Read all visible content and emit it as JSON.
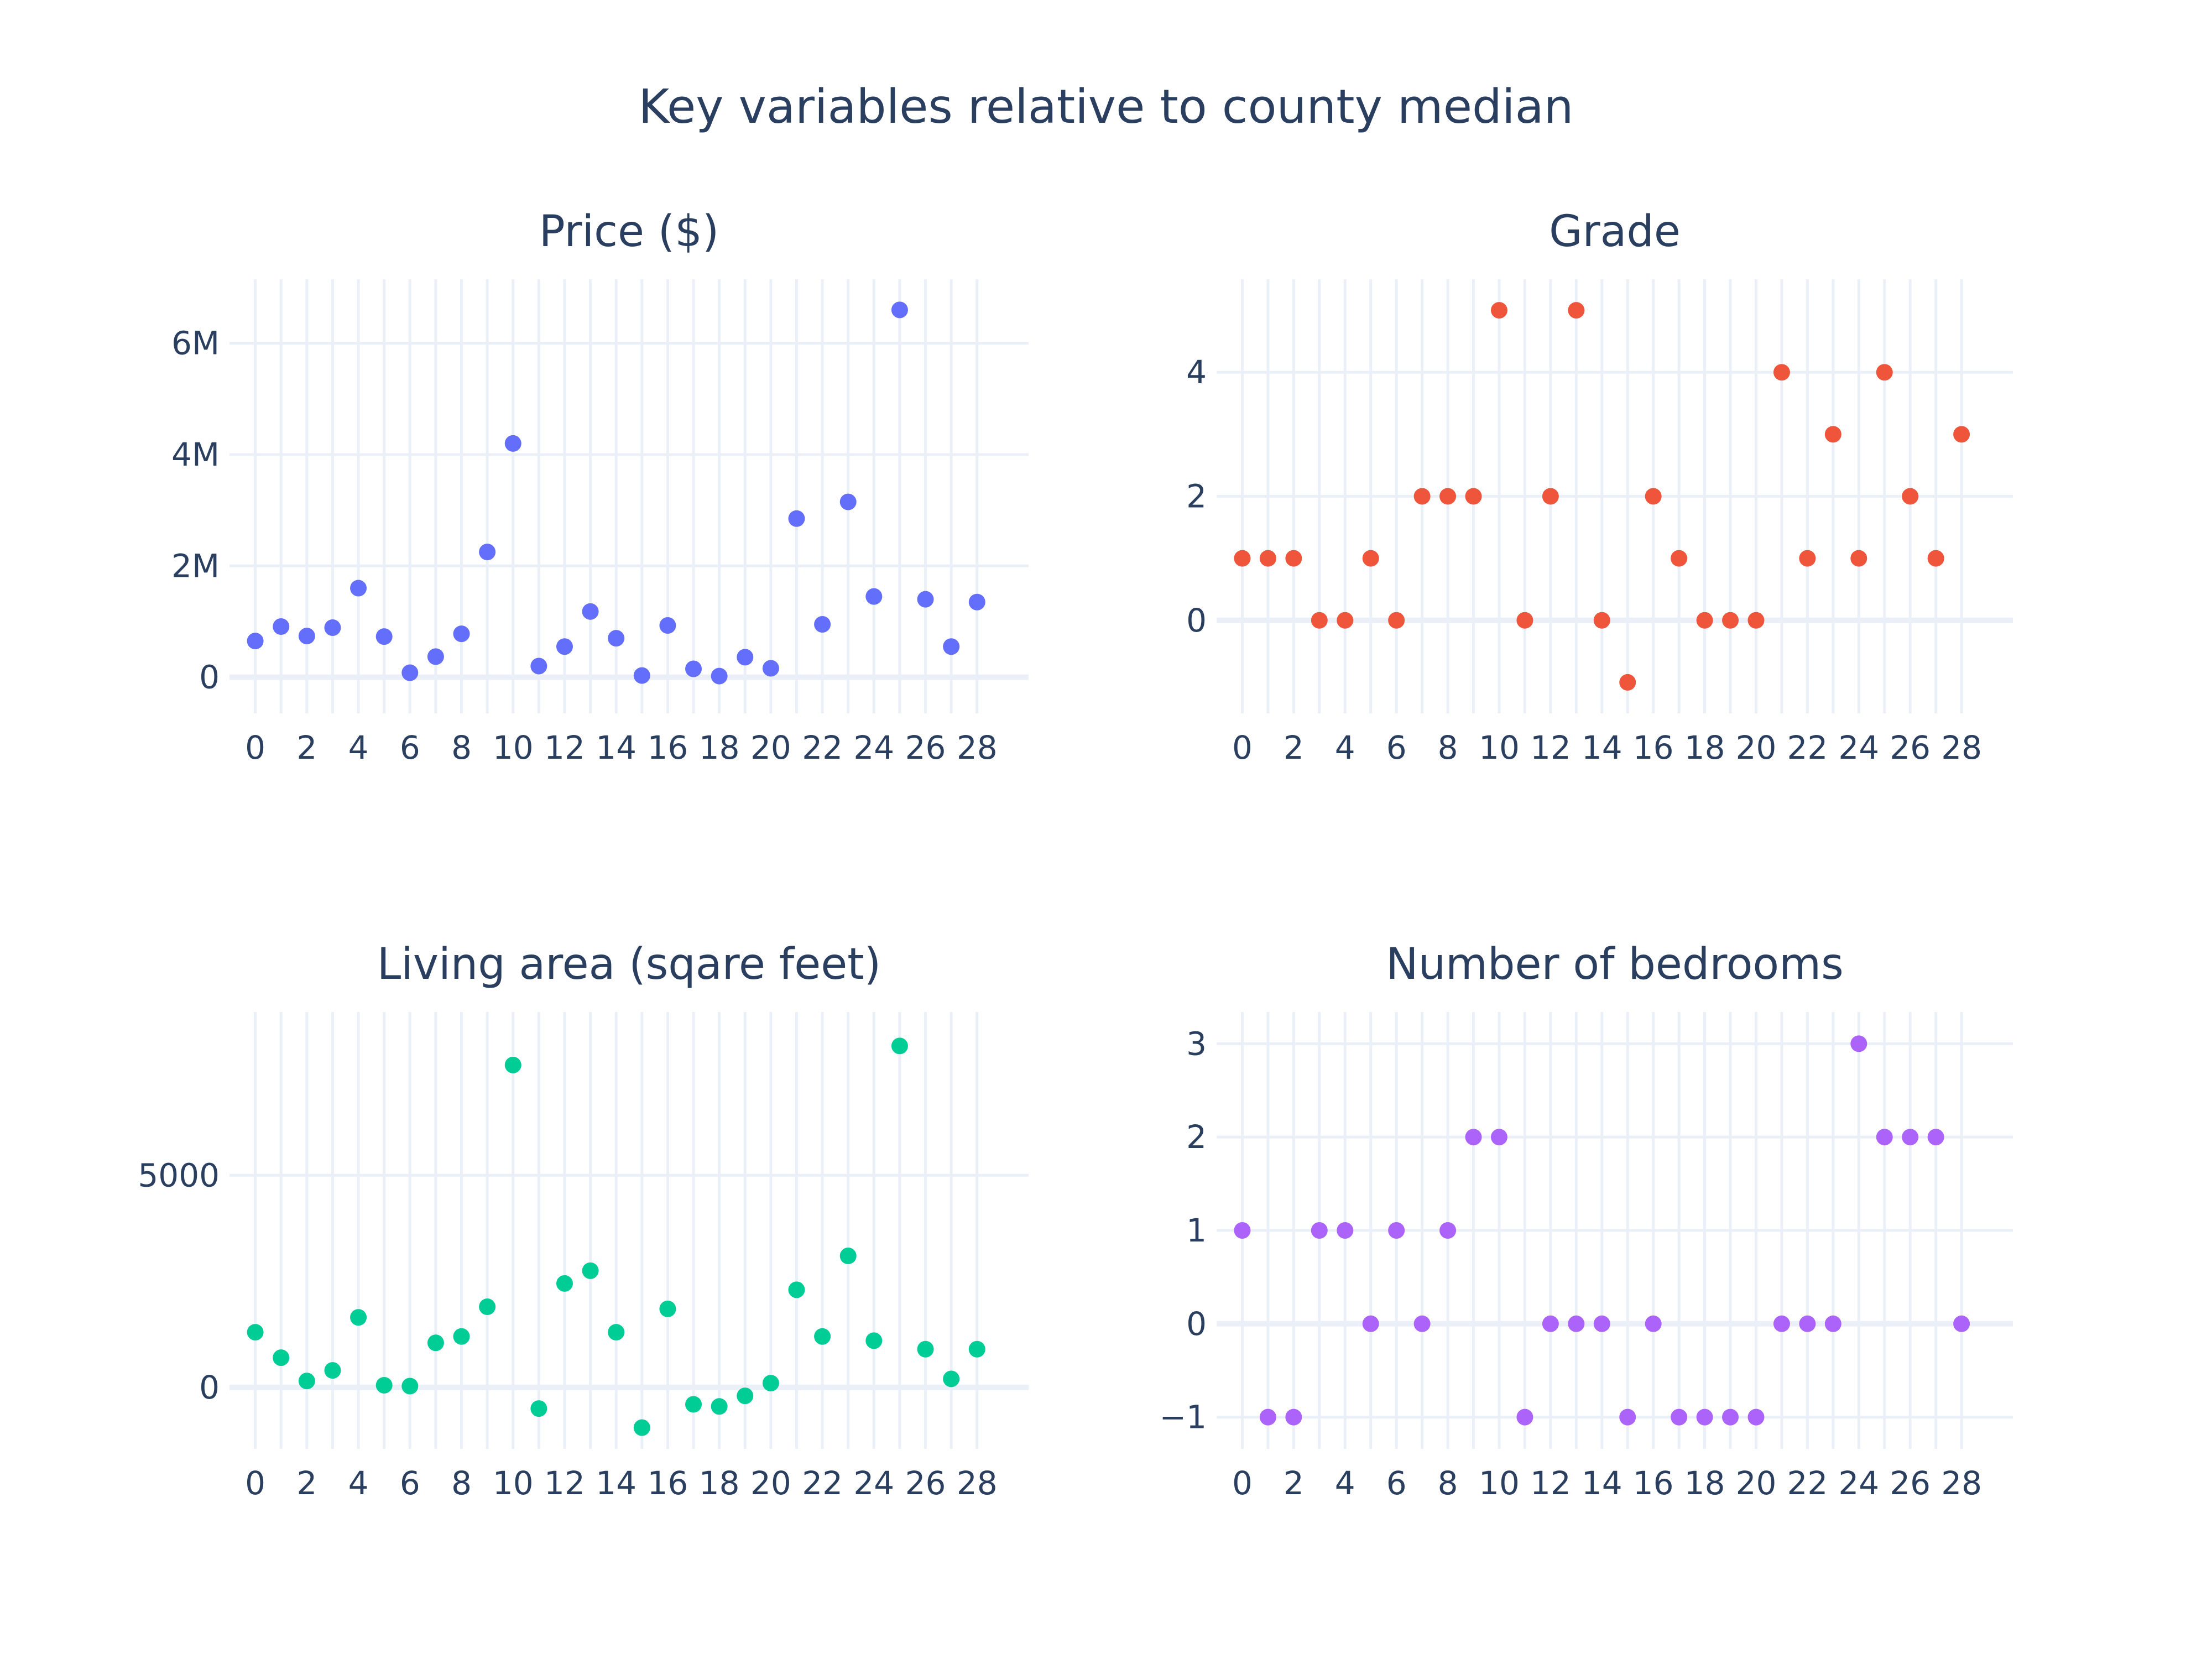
{
  "title": "Key variables relative to county median",
  "chart_data": [
    {
      "type": "scatter",
      "title": "Price ($)",
      "color": "#636efa",
      "x": [
        0,
        1,
        2,
        3,
        4,
        5,
        6,
        7,
        8,
        9,
        10,
        11,
        12,
        13,
        14,
        15,
        16,
        17,
        18,
        19,
        20,
        21,
        22,
        23,
        24,
        25,
        26,
        27,
        28
      ],
      "y": [
        650000,
        910000,
        740000,
        890000,
        1600000,
        730000,
        80000,
        370000,
        780000,
        2250000,
        4200000,
        200000,
        550000,
        1180000,
        700000,
        30000,
        930000,
        150000,
        20000,
        360000,
        160000,
        2850000,
        950000,
        3150000,
        1450000,
        6600000,
        1400000,
        550000,
        1350000
      ],
      "ylim": [
        -650000,
        7150000
      ],
      "xlim": [
        -1,
        30
      ],
      "yticks": [
        0,
        2000000,
        4000000,
        6000000
      ],
      "ytick_labels": [
        "0",
        "2M",
        "4M",
        "6M"
      ],
      "xticks": [
        0,
        2,
        4,
        6,
        8,
        10,
        12,
        14,
        16,
        18,
        20,
        22,
        24,
        26,
        28
      ],
      "xtick_labels": [
        "0",
        "2",
        "4",
        "6",
        "8",
        "10",
        "12",
        "14",
        "16",
        "18",
        "20",
        "22",
        "24",
        "26",
        "28"
      ]
    },
    {
      "type": "scatter",
      "title": "Grade",
      "color": "#ef553b",
      "x": [
        0,
        1,
        2,
        3,
        4,
        5,
        6,
        7,
        8,
        9,
        10,
        11,
        12,
        13,
        14,
        15,
        16,
        17,
        18,
        19,
        20,
        21,
        22,
        23,
        24,
        25,
        26,
        27,
        28
      ],
      "y": [
        1,
        1,
        1,
        0,
        0,
        1,
        0,
        2,
        2,
        2,
        5,
        0,
        2,
        5,
        0,
        -1,
        2,
        1,
        0,
        0,
        0,
        4,
        1,
        3,
        1,
        4,
        2,
        1,
        3
      ],
      "ylim": [
        -1.5,
        5.5
      ],
      "xlim": [
        -1,
        30
      ],
      "yticks": [
        0,
        2,
        4
      ],
      "ytick_labels": [
        "0",
        "2",
        "4"
      ],
      "xticks": [
        0,
        2,
        4,
        6,
        8,
        10,
        12,
        14,
        16,
        18,
        20,
        22,
        24,
        26,
        28
      ],
      "xtick_labels": [
        "0",
        "2",
        "4",
        "6",
        "8",
        "10",
        "12",
        "14",
        "16",
        "18",
        "20",
        "22",
        "24",
        "26",
        "28"
      ]
    },
    {
      "type": "scatter",
      "title": "Living area (sqare feet)",
      "color": "#00cc96",
      "x": [
        0,
        1,
        2,
        3,
        4,
        5,
        6,
        7,
        8,
        9,
        10,
        11,
        12,
        13,
        14,
        15,
        16,
        17,
        18,
        19,
        20,
        21,
        22,
        23,
        24,
        25,
        26,
        27,
        28
      ],
      "y": [
        1300,
        700,
        150,
        400,
        1650,
        50,
        30,
        1050,
        1200,
        1900,
        7600,
        -500,
        2450,
        2750,
        1300,
        -950,
        1850,
        -400,
        -450,
        -200,
        100,
        2300,
        1200,
        3100,
        1100,
        8050,
        900,
        200,
        900
      ],
      "ylim": [
        -1450,
        8850
      ],
      "xlim": [
        -1,
        30
      ],
      "yticks": [
        0,
        5000
      ],
      "ytick_labels": [
        "0",
        "5000"
      ],
      "xticks": [
        0,
        2,
        4,
        6,
        8,
        10,
        12,
        14,
        16,
        18,
        20,
        22,
        24,
        26,
        28
      ],
      "xtick_labels": [
        "0",
        "2",
        "4",
        "6",
        "8",
        "10",
        "12",
        "14",
        "16",
        "18",
        "20",
        "22",
        "24",
        "26",
        "28"
      ]
    },
    {
      "type": "scatter",
      "title": "Number of bedrooms",
      "color": "#ab63fa",
      "x": [
        0,
        1,
        2,
        3,
        4,
        5,
        6,
        7,
        8,
        9,
        10,
        11,
        12,
        13,
        14,
        15,
        16,
        17,
        18,
        19,
        20,
        21,
        22,
        23,
        24,
        25,
        26,
        27,
        28
      ],
      "y": [
        1,
        -1,
        -1,
        1,
        1,
        0,
        1,
        0,
        1,
        2,
        2,
        -1,
        0,
        0,
        0,
        -1,
        0,
        -1,
        -1,
        -1,
        -1,
        0,
        0,
        0,
        3,
        2,
        2,
        2,
        0
      ],
      "ylim": [
        -1.34,
        3.34
      ],
      "xlim": [
        -1,
        30
      ],
      "yticks": [
        -1,
        0,
        1,
        2,
        3
      ],
      "ytick_labels": [
        "−1",
        "0",
        "1",
        "2",
        "3"
      ],
      "xticks": [
        0,
        2,
        4,
        6,
        8,
        10,
        12,
        14,
        16,
        18,
        20,
        22,
        24,
        26,
        28
      ],
      "xtick_labels": [
        "0",
        "2",
        "4",
        "6",
        "8",
        "10",
        "12",
        "14",
        "16",
        "18",
        "20",
        "22",
        "24",
        "26",
        "28"
      ]
    }
  ]
}
